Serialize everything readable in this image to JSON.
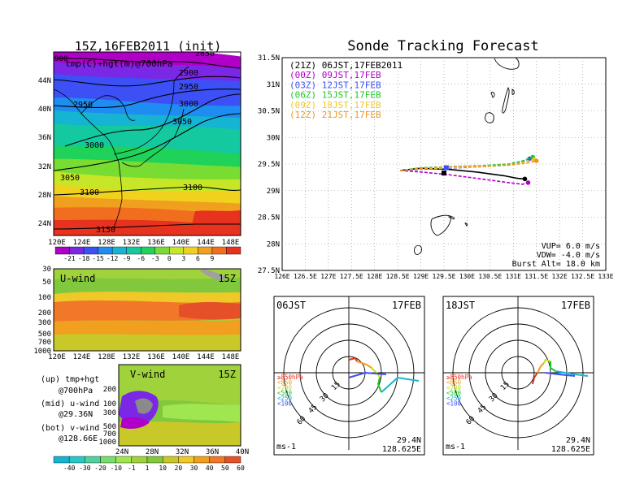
{
  "colors": {
    "temp_bands": [
      "#b000c8",
      "#7a28e6",
      "#3c50f5",
      "#1e8cf0",
      "#14b4d2",
      "#14c8a0",
      "#1ed25a",
      "#78dc32",
      "#c8e628",
      "#f0d21e",
      "#f0a01e",
      "#f06e1e",
      "#e6321e"
    ],
    "wind_bands": [
      "#14b4d2",
      "#28c8c8",
      "#50d2a0",
      "#78dc6e",
      "#a0e650",
      "#a0d23c",
      "#82c83c",
      "#c8c828",
      "#f0c828",
      "#f0a01e",
      "#f07828",
      "#e65028"
    ],
    "launch": [
      "#000000",
      "#b000c8",
      "#3c50f5",
      "#1ec828",
      "#f0c828",
      "#f0961e"
    ],
    "level_legend": [
      "#e6321e",
      "#f0a01e",
      "#c8dc1e",
      "#1ec828",
      "#14b4d2",
      "#3c50f5"
    ]
  },
  "left": {
    "init_title": "15Z,16FEB2011 (init)",
    "subtitle": "tmp(C)+hgt(m)@700hPa",
    "lat_ticks": [
      "44N",
      "40N",
      "36N",
      "32N",
      "28N",
      "24N"
    ],
    "lon_ticks": [
      "120E",
      "124E",
      "128E",
      "132E",
      "136E",
      "140E",
      "144E",
      "148E"
    ],
    "contour_labels": [
      "2850",
      "2900",
      "2950",
      "2950",
      "3000",
      "3050",
      "3000",
      "3050",
      "3100",
      "3100",
      "3150"
    ],
    "temp_colorbar": [
      "-21",
      "-18",
      "-15",
      "-12",
      "-9",
      "-6",
      "-3",
      "0",
      "3",
      "6",
      "9"
    ],
    "uwind_title": "U-wind",
    "uwind_time": "15Z",
    "p_ticks": [
      "30",
      "50",
      "100",
      "200",
      "300",
      "500",
      "700",
      "1000"
    ],
    "vwind_title": "V-wind",
    "vwind_time": "15Z",
    "vwind_lat_ticks": [
      "24N",
      "28N",
      "32N",
      "36N",
      "40N"
    ],
    "vwind_p_ticks": [
      "200",
      "100",
      "300",
      "500",
      "700",
      "1000"
    ],
    "wind_colorbar": [
      "-40",
      "-30",
      "-20",
      "-10",
      "-1",
      "1",
      "10",
      "20",
      "30",
      "40",
      "50",
      "60"
    ],
    "notes": [
      "(up) tmp+hgt",
      "@700hPa",
      "(mid) u-wind",
      "@29.36N",
      "(bot) v-wind",
      "@128.66E"
    ]
  },
  "right": {
    "title": "Sonde Tracking Forecast",
    "launches": [
      "(21Z) 06JST,17FEB2011",
      "(00Z) 09JST,17FEB",
      "(03Z) 12JST,17FEB",
      "(06Z) 15JST,17FEB",
      "(09Z) 18JST,17FEB",
      "(12Z) 21JST,17FEB"
    ],
    "lat_ticks": [
      "31.5N",
      "31N",
      "30.5N",
      "30N",
      "29.5N",
      "29N",
      "28.5N",
      "28N",
      "27.5N"
    ],
    "lon_ticks": [
      "126E",
      "126.5E",
      "127E",
      "127.5E",
      "128E",
      "128.5E",
      "129E",
      "129.5E",
      "130E",
      "130.5E",
      "131E",
      "131.5E",
      "132E",
      "132.5E",
      "133E"
    ],
    "params": [
      "VUP=  6.0 m/s",
      "VDW= -4.0 m/s",
      "Burst Alt= 18.0 km"
    ],
    "hodo1": {
      "time": "06JST",
      "date": "17FEB",
      "lat": "29.4N",
      "lon": "128.625E",
      "unit": "ms-1"
    },
    "hodo2": {
      "time": "18JST",
      "date": "17FEB",
      "lat": "29.4N",
      "lon": "128.625E",
      "unit": "ms-1"
    },
    "ring_labels": [
      "15",
      "30",
      "45",
      "60"
    ],
    "level_legend": [
      "≥850hPa",
      "<850",
      "<700",
      "<500",
      "<250",
      "<100"
    ]
  },
  "chart_data": [
    {
      "type": "heatmap",
      "title": "15Z,16FEB2011 (init)",
      "subtitle": "tmp(C)+hgt(m)@700hPa",
      "xlabel": "",
      "ylabel": "",
      "xlim": [
        "120E",
        "150E"
      ],
      "ylim": [
        "22N",
        "47N"
      ],
      "temperature_levels_C": [
        -21,
        -18,
        -15,
        -12,
        -9,
        -6,
        -3,
        0,
        3,
        6,
        9
      ],
      "height_contours_m": [
        2850,
        2900,
        2950,
        3000,
        3050,
        3100,
        3150
      ]
    },
    {
      "type": "heatmap",
      "title": "U-wind",
      "time": "15Z",
      "x_axis": "longitude 120E-150E",
      "y_axis_hPa": [
        30,
        50,
        100,
        200,
        300,
        500,
        700,
        1000
      ]
    },
    {
      "type": "heatmap",
      "title": "V-wind",
      "time": "15Z",
      "x_axis": "latitude 22N-40N",
      "levels_ms": [
        -40,
        -30,
        -20,
        -10,
        -1,
        1,
        10,
        20,
        30,
        40,
        50,
        60
      ]
    },
    {
      "type": "line",
      "title": "Sonde Tracking Forecast",
      "xlim": [
        126.0,
        133.0
      ],
      "ylim": [
        27.5,
        31.5
      ],
      "series": [
        {
          "name": "(21Z) 06JST,17FEB2011",
          "x": [
            128.55,
            129.0,
            129.6,
            130.2,
            130.8,
            131.1,
            131.25
          ],
          "y": [
            29.38,
            29.42,
            29.4,
            29.35,
            29.28,
            29.23,
            29.22
          ]
        },
        {
          "name": "(00Z) 09JST,17FEB",
          "x": [
            128.55,
            129.0,
            129.6,
            130.3,
            130.9,
            131.2,
            131.32
          ],
          "y": [
            29.38,
            29.35,
            29.3,
            29.22,
            29.15,
            29.12,
            29.15
          ]
        },
        {
          "name": "(03Z) 12JST,17FEB",
          "x": [
            128.55,
            129.0,
            129.6,
            130.3,
            130.9,
            131.2,
            131.35
          ],
          "y": [
            29.38,
            29.4,
            29.42,
            29.45,
            29.48,
            29.55,
            29.6
          ]
        },
        {
          "name": "(06Z) 15JST,17FEB",
          "x": [
            128.55,
            129.0,
            129.6,
            130.3,
            130.9,
            131.2,
            131.42
          ],
          "y": [
            29.38,
            29.43,
            29.45,
            29.47,
            29.5,
            29.56,
            29.63
          ]
        },
        {
          "name": "(09Z) 18JST,17FEB",
          "x": [
            128.55,
            129.0,
            129.6,
            130.3,
            130.9,
            131.2,
            131.45
          ],
          "y": [
            29.38,
            29.41,
            29.43,
            29.45,
            29.48,
            29.53,
            29.58
          ]
        },
        {
          "name": "(12Z) 21JST,17FEB",
          "x": [
            128.55,
            129.0,
            129.6,
            130.3,
            130.9,
            131.3,
            131.5
          ],
          "y": [
            29.38,
            29.42,
            29.45,
            29.46,
            29.48,
            29.52,
            29.56
          ]
        }
      ],
      "launch_point": {
        "x": 129.5,
        "y": 29.33
      }
    }
  ]
}
